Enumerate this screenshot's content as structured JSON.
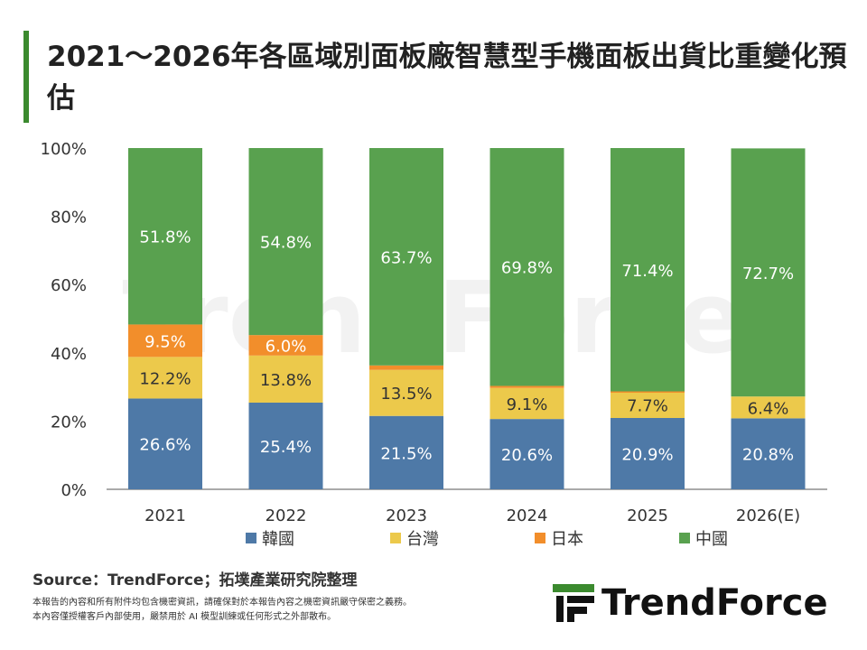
{
  "title": "2021～2026年各區域別面板廠智慧型手機面板出貨比重變化預估",
  "source": "Source：TrendForce；拓墣產業研究院整理",
  "disclaimer": [
    "本報告的內容和所有附件均包含機密資訊，請確保對於本報告內容之機密資訊嚴守保密之義務。",
    "本內容僅授權客戶內部使用，嚴禁用於 AI 模型訓練或任何形式之外部散布。"
  ],
  "logo": "TrendForce",
  "watermark": "TrendForce",
  "chart_data": {
    "type": "bar",
    "stacked": true,
    "categories": [
      "2021",
      "2022",
      "2023",
      "2024",
      "2025",
      "2026(E)"
    ],
    "ylim": [
      0,
      100
    ],
    "yticks": [
      "0%",
      "20%",
      "40%",
      "60%",
      "80%",
      "100%"
    ],
    "grid": false,
    "legend": "bottom",
    "series": [
      {
        "name": "韓國",
        "color": "#4e79a7",
        "label_color": "#ffffff",
        "values": [
          26.6,
          25.4,
          21.5,
          20.6,
          20.9,
          20.8
        ]
      },
      {
        "name": "台灣",
        "color": "#ecc94b",
        "label_color": "#333333",
        "values": [
          12.2,
          13.8,
          13.5,
          9.1,
          7.7,
          6.4
        ]
      },
      {
        "name": "日本",
        "color": "#f28e2b",
        "label_color": "#ffffff",
        "values": [
          9.5,
          6.0,
          1.3,
          0.6,
          0.1,
          null
        ]
      },
      {
        "name": "中國",
        "color": "#59a14f",
        "label_color": "#ffffff",
        "values": [
          51.8,
          54.8,
          63.7,
          69.8,
          71.4,
          72.7
        ]
      }
    ]
  }
}
